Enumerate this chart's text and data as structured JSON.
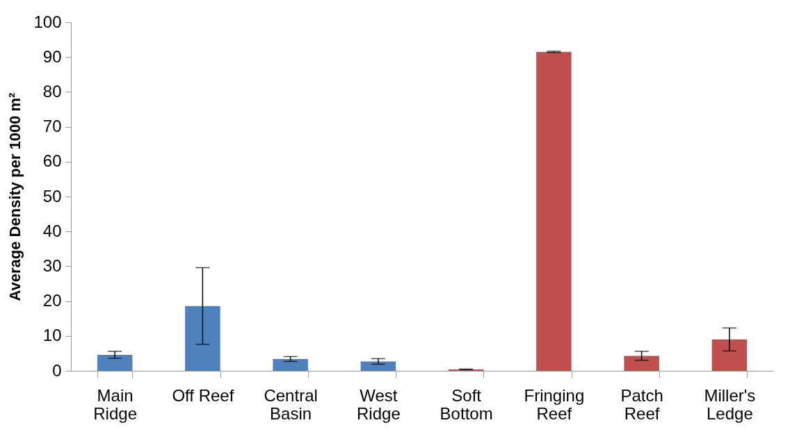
{
  "chart_data": {
    "type": "bar",
    "ylabel": "Average Density per 1000 m²",
    "categories": [
      "Main Ridge",
      "Off Reef",
      "Central Basin",
      "West Ridge",
      "Soft Bottom",
      "Fringing Reef",
      "Patch Reef",
      "Miller's Ledge"
    ],
    "values": [
      4.6,
      18.6,
      3.4,
      2.7,
      0.4,
      91.5,
      4.3,
      9.0
    ],
    "errors": [
      1.0,
      11,
      0.7,
      0.8,
      0.1,
      0.2,
      1.3,
      3.3
    ],
    "colors": [
      "#4f81bd",
      "#4f81bd",
      "#4f81bd",
      "#4f81bd",
      "#c0504d",
      "#c0504d",
      "#c0504d",
      "#c0504d"
    ],
    "ylim": [
      0,
      100
    ],
    "yticks": [
      0,
      10,
      20,
      30,
      40,
      50,
      60,
      70,
      80,
      90,
      100
    ],
    "grid": false
  }
}
